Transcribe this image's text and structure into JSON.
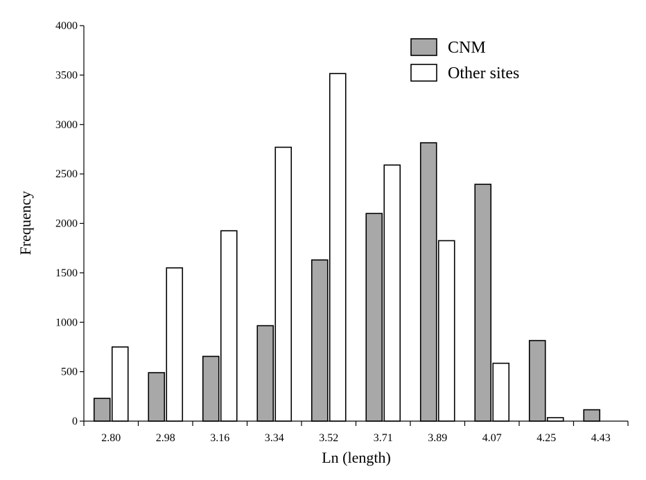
{
  "chart_data": {
    "type": "bar",
    "title": "",
    "xlabel": "Ln (length)",
    "ylabel": "Frequency",
    "ylim": [
      0,
      4000
    ],
    "yticks": [
      0,
      500,
      1000,
      1500,
      2000,
      2500,
      3000,
      3500,
      4000
    ],
    "categories": [
      "2.80",
      "2.98",
      "3.16",
      "3.34",
      "3.52",
      "3.71",
      "3.89",
      "4.07",
      "4.25",
      "4.43"
    ],
    "series": [
      {
        "name": "CNM",
        "color": "#a8a8a8",
        "values": [
          230,
          490,
          655,
          965,
          1630,
          2100,
          2815,
          2395,
          815,
          115
        ]
      },
      {
        "name": "Other sites",
        "color": "#ffffff",
        "values": [
          750,
          1550,
          1925,
          2770,
          3515,
          2590,
          1825,
          585,
          35,
          0
        ]
      }
    ],
    "legend_position": "top-right",
    "grid": false
  }
}
